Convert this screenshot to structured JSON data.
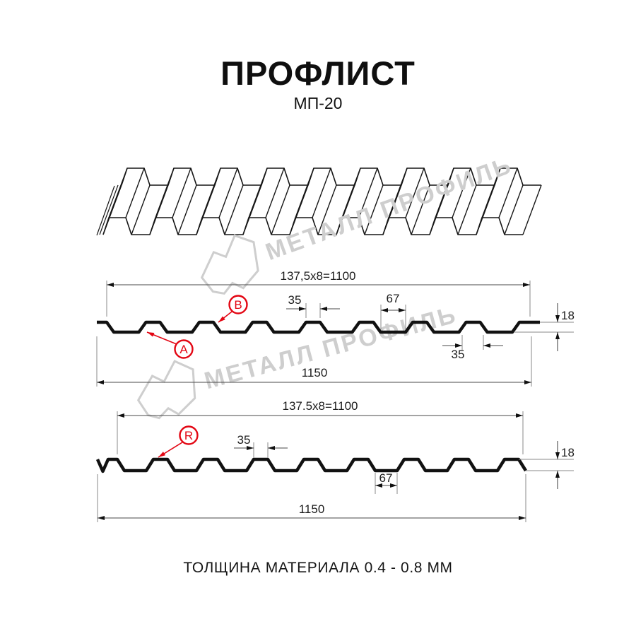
{
  "header": {
    "title": "ПРОФЛИСТ",
    "subtitle": "МП-20"
  },
  "footer": {
    "note": "ТОЛЩИНА МАТЕРИАЛА 0.4 - 0.8 ММ"
  },
  "watermark": {
    "text": "МЕТАЛЛ ПРОФИЛЬ"
  },
  "colors": {
    "line_black": "#161616",
    "dim_line": "#4a4a4a",
    "ext_line": "#8a8a8a",
    "accent_red": "#e30613",
    "watermark_gray": "#cecece"
  },
  "section_top": {
    "width_total": "137,5x8=1100",
    "rib_top_width": "35",
    "flat_width": "67",
    "height": "18",
    "rib_bottom_width": "35",
    "full_width": "1150",
    "label_a": "A",
    "label_b": "B"
  },
  "section_bottom": {
    "width_total": "137.5x8=1100",
    "rib_top_width": "35",
    "flat_width": "67",
    "height": "18",
    "full_width": "1150",
    "label_r": "R"
  }
}
